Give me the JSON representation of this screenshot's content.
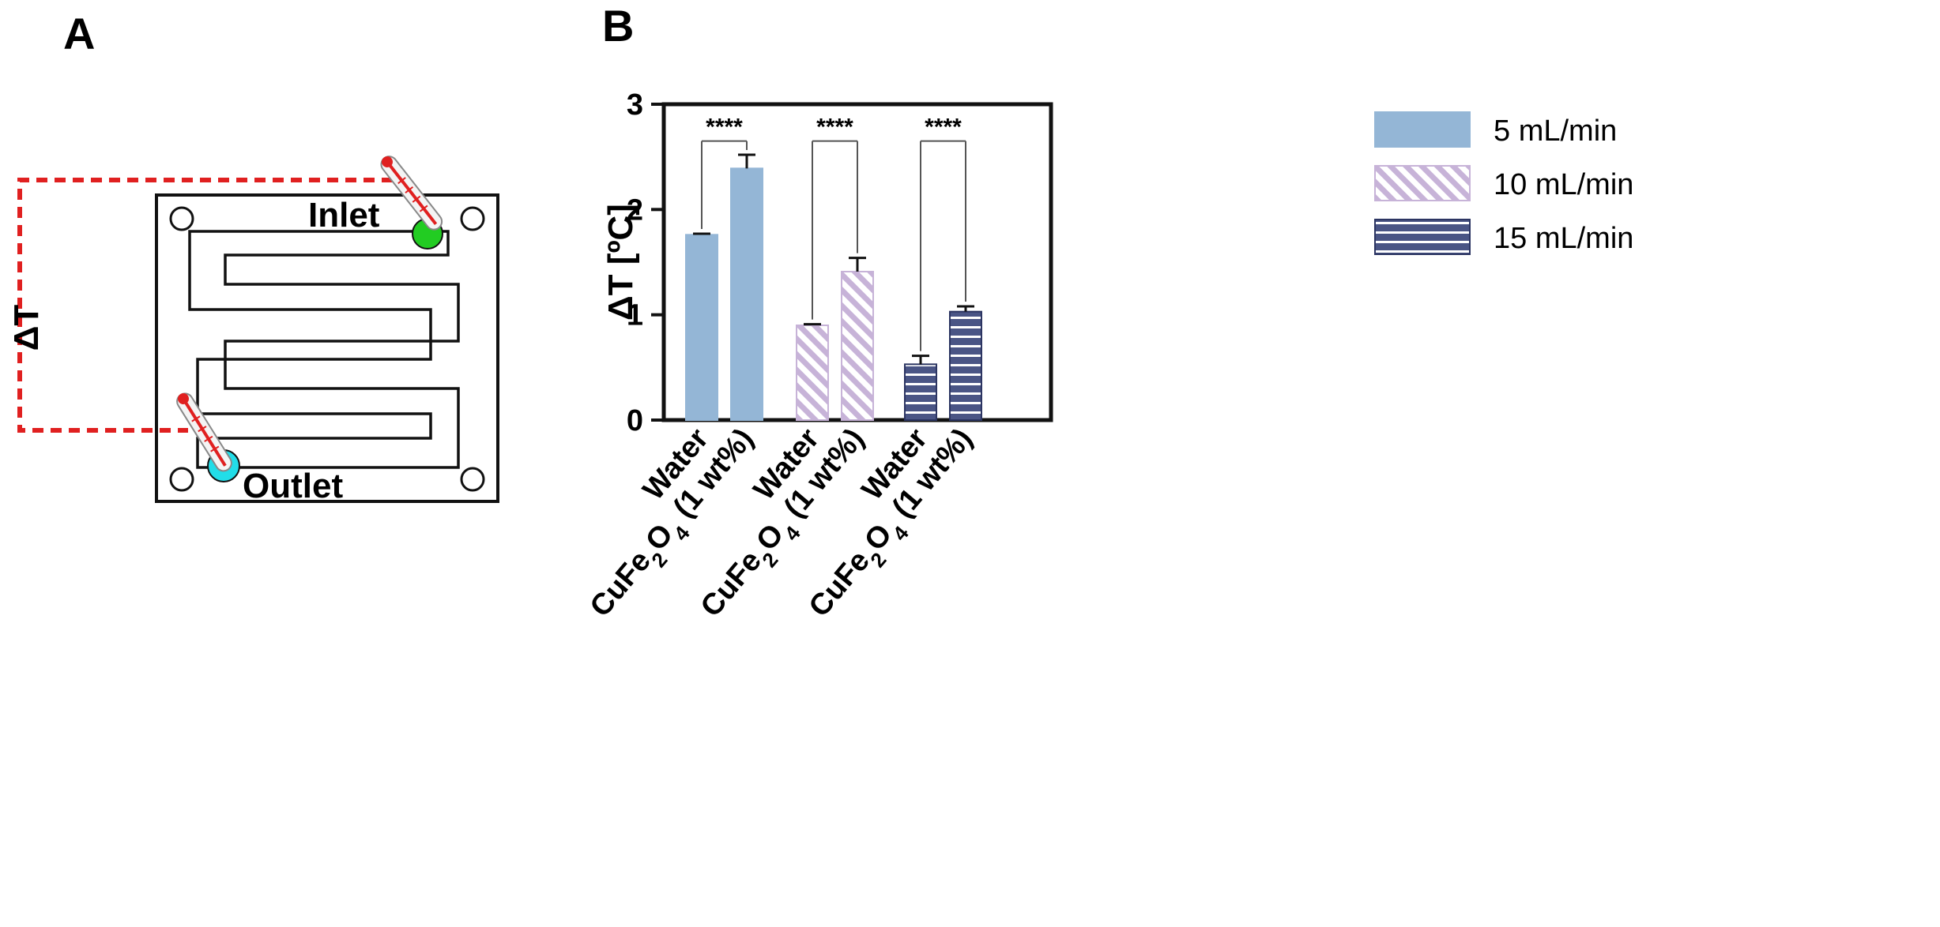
{
  "panels": {
    "a_label": "A",
    "b_label": "B"
  },
  "schematic": {
    "inlet_label": "Inlet",
    "outlet_label": "Outlet",
    "delta_label": "ΔT",
    "colors": {
      "inlet_port": "#22cc22",
      "outlet_port": "#22dde8",
      "dashed_line": "#e02020",
      "thermometer": "#e02020"
    }
  },
  "chart_data": {
    "type": "bar",
    "title": "",
    "xlabel": "",
    "ylabel": "ΔT [ºC]",
    "ylim": [
      0,
      3
    ],
    "yticks": [
      0,
      1,
      2,
      3
    ],
    "ytick_labels": [
      "0",
      "1",
      "2",
      "3"
    ],
    "legend_position": "right",
    "groups": [
      {
        "name": "5 mL/min",
        "pattern": "solid",
        "color": "#94b6d6",
        "categories": [
          "Water",
          "CuFe2O4 (1 wt%)"
        ],
        "values": [
          1.76,
          2.39
        ],
        "errors": [
          0.01,
          0.13
        ],
        "significance": "****"
      },
      {
        "name": "10 mL/min",
        "pattern": "diagonal",
        "color": "#c7b3d8",
        "categories": [
          "Water",
          "CuFe2O4 (1 wt%)"
        ],
        "values": [
          0.9,
          1.41
        ],
        "errors": [
          0.01,
          0.13
        ],
        "significance": "****"
      },
      {
        "name": "15 mL/min",
        "pattern": "horizontal",
        "color": "#4a5585",
        "categories": [
          "Water",
          "CuFe2O4 (1 wt%)"
        ],
        "values": [
          0.53,
          1.03
        ],
        "errors": [
          0.08,
          0.05
        ],
        "significance": "****"
      }
    ]
  }
}
